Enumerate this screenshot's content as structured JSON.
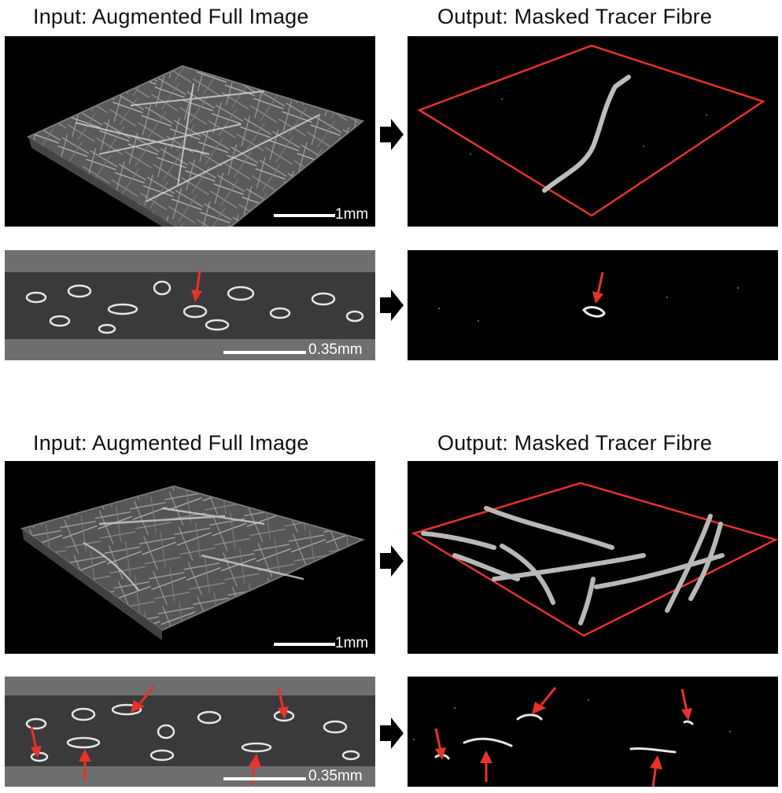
{
  "figure": {
    "blocks": [
      {
        "input_title": "Input: Augmented Full Image",
        "output_title": "Output: Masked Tracer Fibre",
        "top_scale": "1mm",
        "bottom_scale": "0.35mm"
      },
      {
        "input_title": "Input: Augmented Full Image",
        "output_title": "Output: Masked Tracer Fibre",
        "top_scale": "1mm",
        "bottom_scale": "0.35mm"
      }
    ],
    "colors": {
      "background": "#ffffff",
      "panel": "#000000",
      "slice_gray": "#6f6f6f",
      "outline_red": "#e8322a",
      "annotation_arrow_red": "#e8322a",
      "flow_arrow": "#000000"
    },
    "icons": [
      "flow-arrow-icon",
      "red-pointer-arrow-icon"
    ]
  }
}
